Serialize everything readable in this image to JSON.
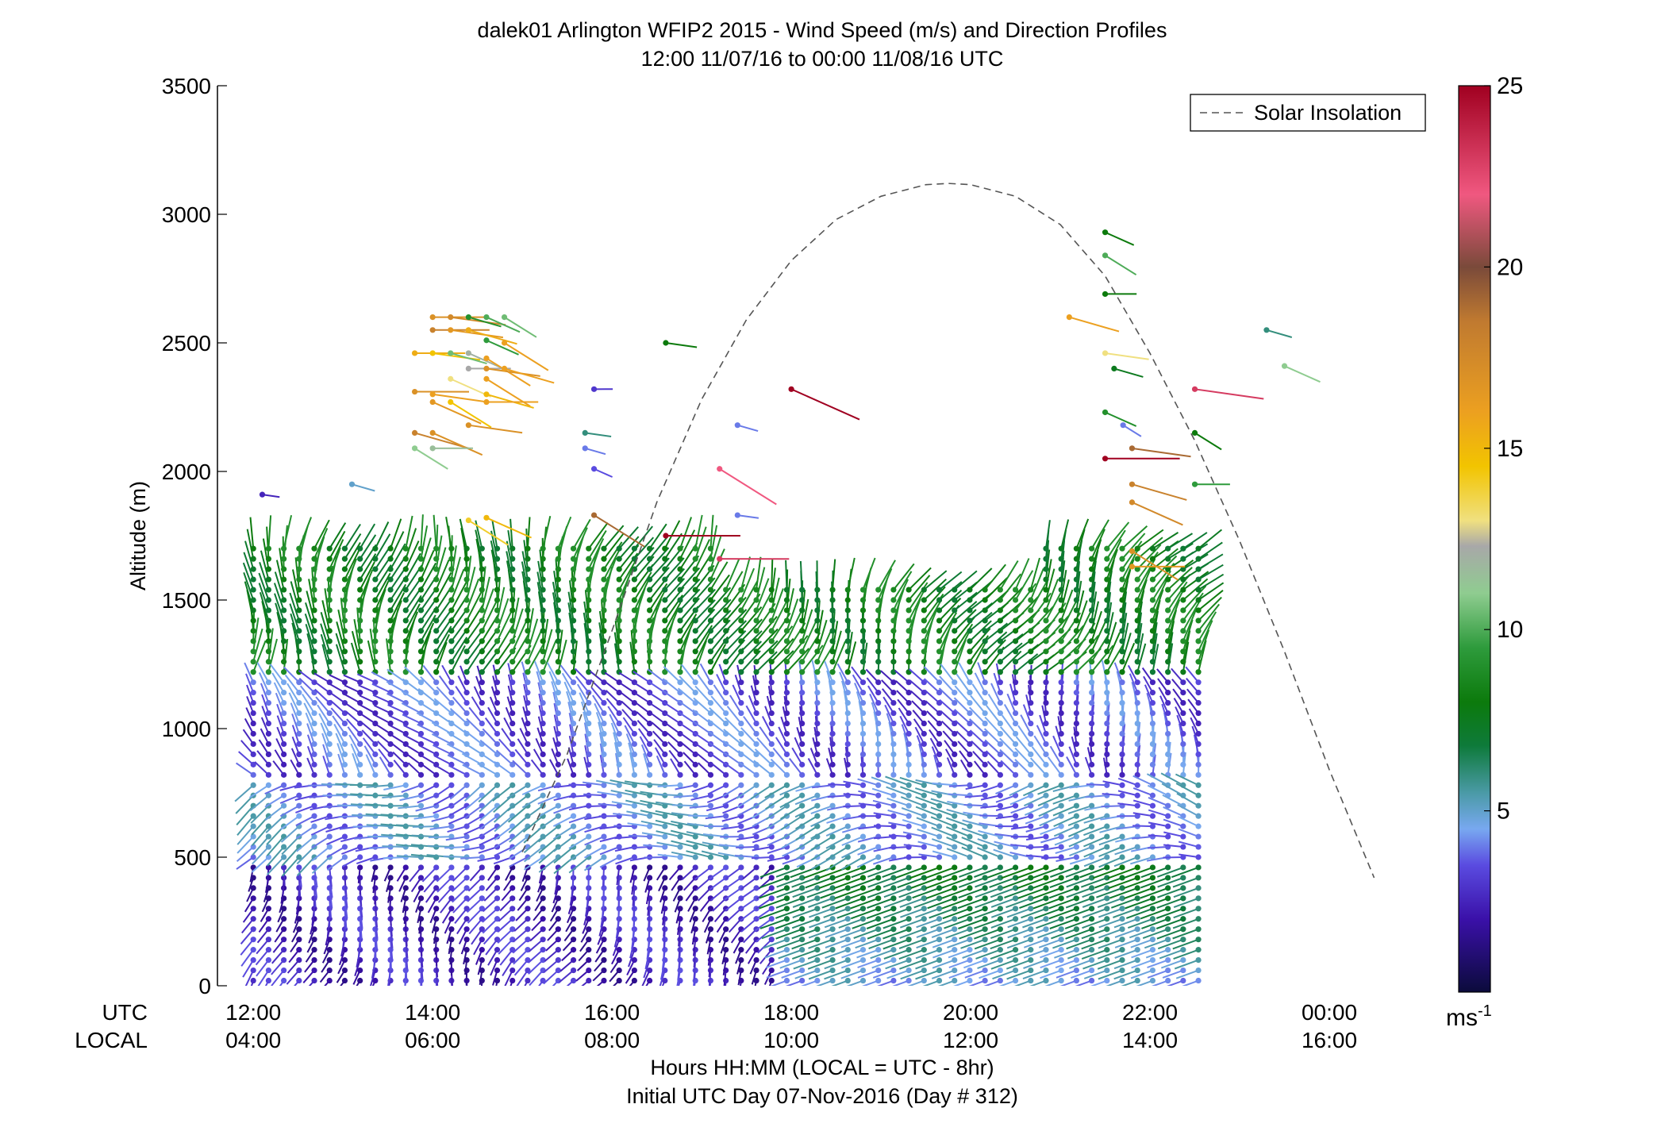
{
  "chart_data": {
    "type": "scatter",
    "title": "dalek01 Arlington WFIP2 2015 - Wind Speed (m/s) and Direction Profiles",
    "subtitle": "12:00 11/07/16 to 00:00 11/08/16  UTC",
    "ylabel": "Altitude (m)",
    "ylim": [
      0,
      3500
    ],
    "yticks": [
      "0",
      "500",
      "1000",
      "1500",
      "2000",
      "2500",
      "3000",
      "3500"
    ],
    "xlim_hours_utc": [
      11.6,
      25.0
    ],
    "xticks_utc": [
      "12:00",
      "14:00",
      "16:00",
      "18:00",
      "20:00",
      "22:00",
      "00:00"
    ],
    "xticks_local": [
      "04:00",
      "06:00",
      "08:00",
      "10:00",
      "12:00",
      "14:00",
      "16:00"
    ],
    "xtick_hours": [
      12,
      14,
      16,
      18,
      20,
      22,
      24
    ],
    "xrow_label_utc": "UTC",
    "xrow_label_local": "LOCAL",
    "xlabel": "Hours HH:MM  (LOCAL = UTC - 8hr)",
    "xlabel2": "Initial UTC Day 07-Nov-2016 (Day # 312)",
    "grid": false,
    "legend": {
      "position": "top-right",
      "entries": [
        {
          "label": "Solar Insolation",
          "style": "dashed",
          "color": "#555555"
        }
      ]
    },
    "solar_insolation": {
      "peak_hour_utc": 19.75,
      "peak_altitude_m": 3120,
      "points": [
        {
          "x": 15.0,
          "y": 520
        },
        {
          "x": 15.5,
          "y": 900
        },
        {
          "x": 16.0,
          "y": 1380
        },
        {
          "x": 16.5,
          "y": 1880
        },
        {
          "x": 17.0,
          "y": 2280
        },
        {
          "x": 17.5,
          "y": 2590
        },
        {
          "x": 18.0,
          "y": 2820
        },
        {
          "x": 18.5,
          "y": 2980
        },
        {
          "x": 19.0,
          "y": 3070
        },
        {
          "x": 19.5,
          "y": 3115
        },
        {
          "x": 19.75,
          "y": 3120
        },
        {
          "x": 20.0,
          "y": 3115
        },
        {
          "x": 20.5,
          "y": 3070
        },
        {
          "x": 21.0,
          "y": 2960
        },
        {
          "x": 21.5,
          "y": 2760
        },
        {
          "x": 22.0,
          "y": 2460
        },
        {
          "x": 22.5,
          "y": 2120
        },
        {
          "x": 23.0,
          "y": 1730
        },
        {
          "x": 23.5,
          "y": 1300
        },
        {
          "x": 24.0,
          "y": 840
        },
        {
          "x": 24.5,
          "y": 420
        }
      ]
    },
    "colorbar": {
      "label": "ms",
      "label_superscript": "-1",
      "min": 0,
      "max": 25,
      "ticks": [
        "5",
        "10",
        "15",
        "20",
        "25"
      ],
      "stops": [
        {
          "v": 0,
          "color": "#0b0b3b"
        },
        {
          "v": 2,
          "color": "#3a10a8"
        },
        {
          "v": 3.5,
          "color": "#5a4be0"
        },
        {
          "v": 4.5,
          "color": "#78a8f0"
        },
        {
          "v": 5.5,
          "color": "#4a9aa6"
        },
        {
          "v": 6.8,
          "color": "#0e7a3a"
        },
        {
          "v": 8,
          "color": "#0c7a0c"
        },
        {
          "v": 9.5,
          "color": "#2e9b3c"
        },
        {
          "v": 11,
          "color": "#8fcc90"
        },
        {
          "v": 12.3,
          "color": "#a8a8a8"
        },
        {
          "v": 13,
          "color": "#f0e080"
        },
        {
          "v": 14.5,
          "color": "#f2c400"
        },
        {
          "v": 16,
          "color": "#eca020"
        },
        {
          "v": 18.5,
          "color": "#c07a30"
        },
        {
          "v": 20,
          "color": "#7a4a3a"
        },
        {
          "v": 22,
          "color": "#f05880"
        },
        {
          "v": 25,
          "color": "#a00020"
        }
      ]
    },
    "profiles": {
      "start_hour_utc": 12.0,
      "step_hours": 0.17,
      "count": 63,
      "valid_top_m": 1700,
      "gate_spacing_m": 40,
      "notes_layers": [
        {
          "from_m": 0,
          "to_m": 500,
          "speed_ms": 2.5,
          "dir_deg": 210
        },
        {
          "from_m": 500,
          "to_m": 800,
          "speed_ms": 4.5,
          "dir_deg": 260
        },
        {
          "from_m": 800,
          "to_m": 1200,
          "speed_ms": 3.5,
          "dir_deg": 330
        },
        {
          "from_m": 1200,
          "to_m": 1700,
          "speed_ms": 8.0,
          "dir_deg": 20
        }
      ]
    },
    "upper_points": [
      {
        "x": 14.0,
        "y": 2600,
        "v": 17
      },
      {
        "x": 14.2,
        "y": 2600,
        "v": 17.5
      },
      {
        "x": 14.4,
        "y": 2600,
        "v": 9
      },
      {
        "x": 14.6,
        "y": 2600,
        "v": 10
      },
      {
        "x": 14.8,
        "y": 2600,
        "v": 10.5
      },
      {
        "x": 14.0,
        "y": 2550,
        "v": 18
      },
      {
        "x": 14.2,
        "y": 2550,
        "v": 16.5
      },
      {
        "x": 14.4,
        "y": 2550,
        "v": 15.5
      },
      {
        "x": 14.6,
        "y": 2510,
        "v": 9.5
      },
      {
        "x": 14.8,
        "y": 2500,
        "v": 16
      },
      {
        "x": 13.8,
        "y": 2460,
        "v": 15.5
      },
      {
        "x": 14.0,
        "y": 2460,
        "v": 14.5
      },
      {
        "x": 14.2,
        "y": 2460,
        "v": 10.5
      },
      {
        "x": 14.4,
        "y": 2460,
        "v": 12
      },
      {
        "x": 14.6,
        "y": 2440,
        "v": 16
      },
      {
        "x": 14.4,
        "y": 2400,
        "v": 12.3
      },
      {
        "x": 14.6,
        "y": 2400,
        "v": 17
      },
      {
        "x": 14.8,
        "y": 2400,
        "v": 16
      },
      {
        "x": 14.2,
        "y": 2360,
        "v": 13
      },
      {
        "x": 14.6,
        "y": 2360,
        "v": 16
      },
      {
        "x": 13.8,
        "y": 2310,
        "v": 17
      },
      {
        "x": 14.0,
        "y": 2300,
        "v": 16
      },
      {
        "x": 14.6,
        "y": 2300,
        "v": 15
      },
      {
        "x": 14.0,
        "y": 2270,
        "v": 16.5
      },
      {
        "x": 14.2,
        "y": 2270,
        "v": 14.5
      },
      {
        "x": 14.6,
        "y": 2270,
        "v": 16
      },
      {
        "x": 14.4,
        "y": 2180,
        "v": 17
      },
      {
        "x": 13.8,
        "y": 2150,
        "v": 18
      },
      {
        "x": 14.0,
        "y": 2150,
        "v": 17
      },
      {
        "x": 13.8,
        "y": 2090,
        "v": 11
      },
      {
        "x": 14.0,
        "y": 2090,
        "v": 11.5
      },
      {
        "x": 12.1,
        "y": 1910,
        "v": 2.5
      },
      {
        "x": 13.1,
        "y": 1950,
        "v": 5
      },
      {
        "x": 14.6,
        "y": 1820,
        "v": 15
      },
      {
        "x": 14.4,
        "y": 1810,
        "v": 14
      },
      {
        "x": 15.8,
        "y": 2320,
        "v": 3
      },
      {
        "x": 15.7,
        "y": 2150,
        "v": 6
      },
      {
        "x": 15.7,
        "y": 2090,
        "v": 4
      },
      {
        "x": 15.8,
        "y": 2010,
        "v": 3.5
      },
      {
        "x": 15.8,
        "y": 1830,
        "v": 19
      },
      {
        "x": 16.6,
        "y": 1750,
        "v": 25
      },
      {
        "x": 16.6,
        "y": 2500,
        "v": 8
      },
      {
        "x": 17.4,
        "y": 2180,
        "v": 4
      },
      {
        "x": 18.0,
        "y": 2320,
        "v": 25
      },
      {
        "x": 17.2,
        "y": 2010,
        "v": 22
      },
      {
        "x": 17.2,
        "y": 1660,
        "v": 23
      },
      {
        "x": 17.4,
        "y": 1830,
        "v": 4
      },
      {
        "x": 21.1,
        "y": 2600,
        "v": 16
      },
      {
        "x": 21.5,
        "y": 2930,
        "v": 8
      },
      {
        "x": 21.5,
        "y": 2840,
        "v": 10
      },
      {
        "x": 21.5,
        "y": 2690,
        "v": 8
      },
      {
        "x": 21.5,
        "y": 2460,
        "v": 13
      },
      {
        "x": 21.6,
        "y": 2400,
        "v": 7.5
      },
      {
        "x": 21.5,
        "y": 2230,
        "v": 9
      },
      {
        "x": 21.7,
        "y": 2180,
        "v": 4
      },
      {
        "x": 21.5,
        "y": 2050,
        "v": 25
      },
      {
        "x": 21.8,
        "y": 2090,
        "v": 19
      },
      {
        "x": 21.8,
        "y": 1950,
        "v": 18
      },
      {
        "x": 21.8,
        "y": 1880,
        "v": 17.5
      },
      {
        "x": 21.8,
        "y": 1690,
        "v": 17
      },
      {
        "x": 21.8,
        "y": 1630,
        "v": 16.5
      },
      {
        "x": 22.5,
        "y": 2320,
        "v": 23
      },
      {
        "x": 23.3,
        "y": 2550,
        "v": 6
      },
      {
        "x": 23.5,
        "y": 2410,
        "v": 11
      },
      {
        "x": 22.5,
        "y": 2150,
        "v": 8
      },
      {
        "x": 22.5,
        "y": 1950,
        "v": 9.5
      }
    ]
  }
}
